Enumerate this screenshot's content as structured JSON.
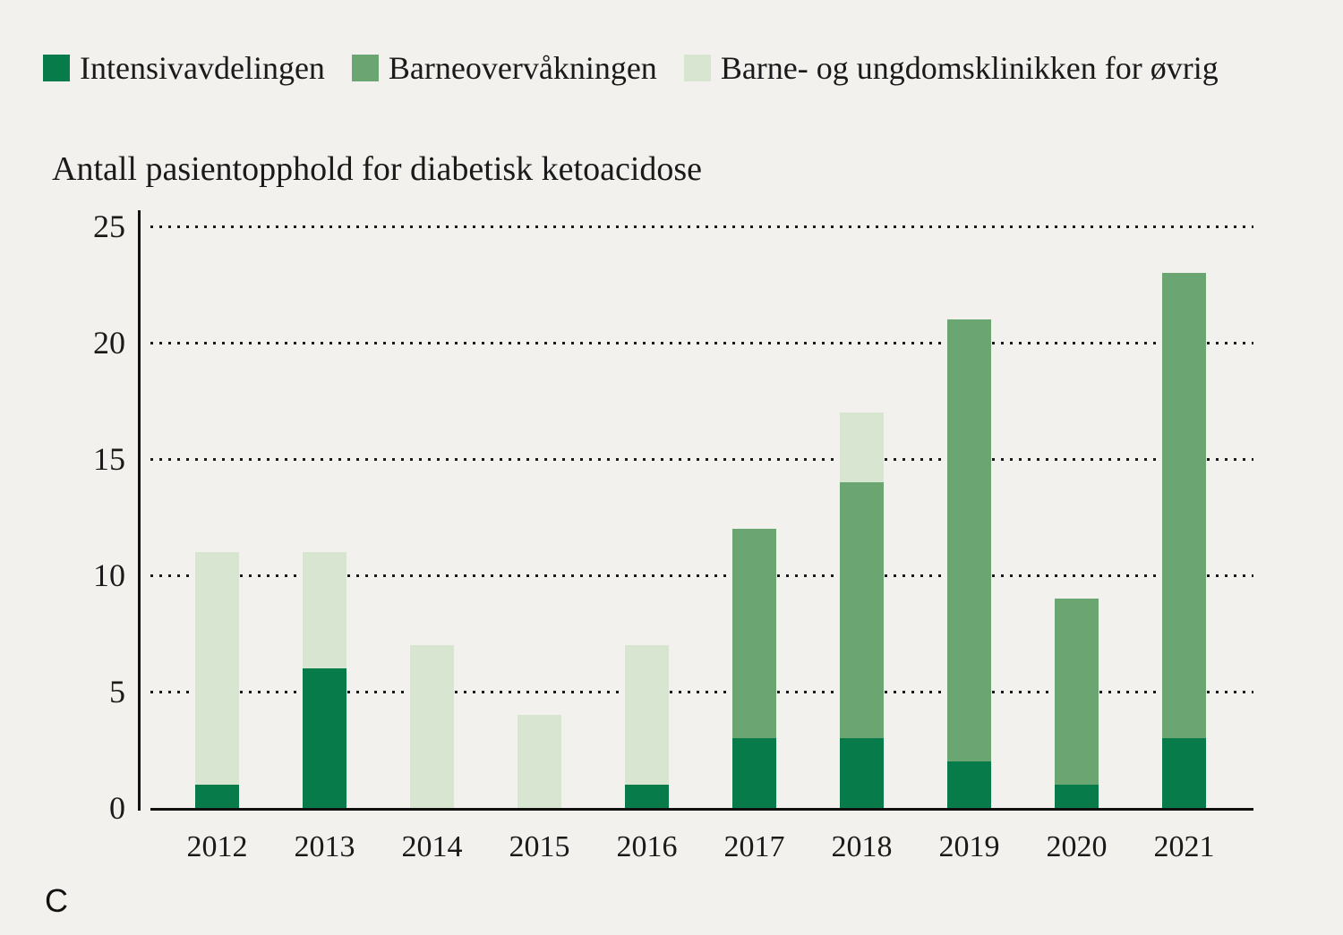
{
  "background_color": "#f2f1ee",
  "text_color": "#1a1a1a",
  "figure_label": "C",
  "legend": {
    "items": [
      {
        "label": "Intensivavdelingen",
        "color": "#087b4a"
      },
      {
        "label": "Barneovervåkningen",
        "color": "#6ba572"
      },
      {
        "label": "Barne- og ungdomsklinikken for øvrig",
        "color": "#d8e5d0"
      }
    ]
  },
  "chart_data": {
    "type": "bar",
    "stacked": true,
    "title": "Antall pasientopphold for diabetisk ketoacidose",
    "categories": [
      "2012",
      "2013",
      "2014",
      "2015",
      "2016",
      "2017",
      "2018",
      "2019",
      "2020",
      "2021"
    ],
    "series": [
      {
        "name": "Intensivavdelingen",
        "color": "#087b4a",
        "values": [
          1,
          6,
          0,
          0,
          1,
          3,
          3,
          2,
          1,
          3
        ]
      },
      {
        "name": "Barneovervåkningen",
        "color": "#6ba572",
        "values": [
          0,
          0,
          0,
          0,
          0,
          9,
          11,
          19,
          8,
          20
        ]
      },
      {
        "name": "Barne- og ungdomsklinikken for øvrig",
        "color": "#d8e5d0",
        "values": [
          10,
          5,
          7,
          4,
          6,
          0,
          3,
          0,
          0,
          0
        ]
      }
    ],
    "totals": [
      11,
      11,
      7,
      4,
      7,
      12,
      17,
      21,
      9,
      23
    ],
    "xlabel": "",
    "ylabel": "",
    "ylim": [
      0,
      25
    ],
    "yticks": [
      0,
      5,
      10,
      15,
      20,
      25
    ],
    "grid": "horizontal dotted lines at 5,10,15,20,25; solid baseline at 0",
    "legend_position": "top-left"
  }
}
